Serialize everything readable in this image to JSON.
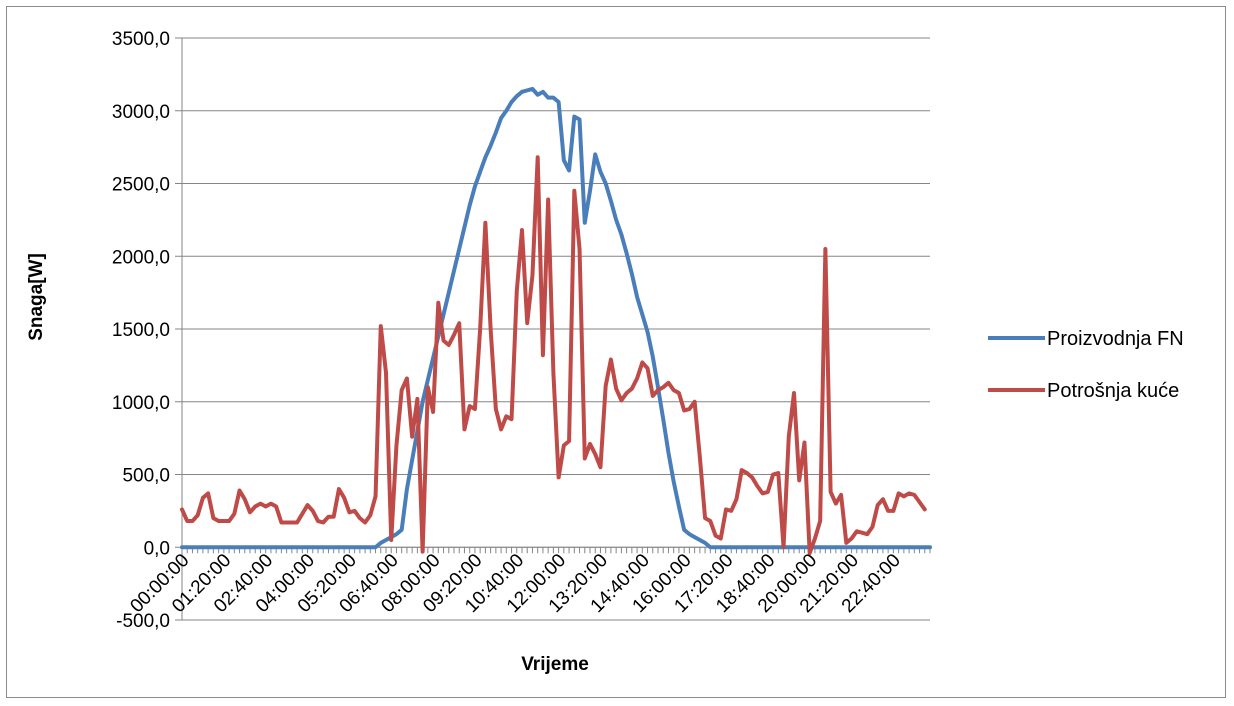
{
  "chart_data": {
    "type": "line",
    "title": "",
    "xlabel": "Vrijeme",
    "ylabel": "Snaga[W]",
    "ylim": [
      -500,
      3500
    ],
    "yticks": [
      -500,
      0,
      500,
      1000,
      1500,
      2000,
      2500,
      3000,
      3500
    ],
    "ytick_labels": [
      "-500,0",
      "0,0",
      "500,0",
      "1000,0",
      "1500,0",
      "2000,0",
      "2500,0",
      "3000,0",
      "3500,0"
    ],
    "x_interval_minutes": 10,
    "x_start": "00:00:00",
    "xtick_labels": [
      "00:00:00",
      "01:20:00",
      "02:40:00",
      "04:00:00",
      "05:20:00",
      "06:40:00",
      "08:00:00",
      "09:20:00",
      "10:40:00",
      "12:00:00",
      "13:20:00",
      "14:40:00",
      "16:00:00",
      "17:20:00",
      "18:40:00",
      "20:00:00",
      "21:20:00",
      "22:40:00"
    ],
    "grid": true,
    "legend_position": "right",
    "colors": {
      "series1": "#4a7ebb",
      "series2": "#be4b48",
      "grid": "#868686",
      "axis": "#868686"
    },
    "series": [
      {
        "name": "Proizvodnja FN",
        "values": [
          0,
          0,
          0,
          0,
          0,
          0,
          0,
          0,
          0,
          0,
          0,
          0,
          0,
          0,
          0,
          0,
          0,
          0,
          0,
          0,
          0,
          0,
          0,
          0,
          0,
          0,
          0,
          0,
          0,
          0,
          0,
          0,
          0,
          0,
          0,
          0,
          0,
          0,
          30,
          50,
          70,
          90,
          120,
          400,
          600,
          800,
          1000,
          1150,
          1300,
          1450,
          1600,
          1750,
          1900,
          2050,
          2200,
          2350,
          2480,
          2580,
          2680,
          2760,
          2850,
          2950,
          3000,
          3060,
          3100,
          3130,
          3140,
          3150,
          3110,
          3130,
          3090,
          3090,
          3060,
          2660,
          2590,
          2960,
          2940,
          2230,
          2450,
          2700,
          2580,
          2500,
          2380,
          2250,
          2150,
          2020,
          1880,
          1720,
          1600,
          1480,
          1310,
          1100,
          880,
          650,
          450,
          280,
          120,
          90,
          70,
          50,
          30,
          0,
          0,
          0,
          0,
          0,
          0,
          0,
          0,
          0,
          0,
          0,
          0,
          0,
          0,
          0,
          0,
          0,
          0,
          0,
          0,
          0,
          0,
          0,
          0,
          0,
          0,
          0,
          0,
          0,
          0,
          0,
          0,
          0,
          0,
          0,
          0,
          0,
          0,
          0,
          0,
          0,
          0,
          0
        ]
      },
      {
        "name": "Potrošnja kuće",
        "values": [
          260,
          180,
          180,
          220,
          340,
          370,
          200,
          180,
          180,
          180,
          230,
          390,
          330,
          240,
          280,
          300,
          280,
          300,
          280,
          170,
          170,
          170,
          170,
          230,
          290,
          250,
          180,
          170,
          210,
          210,
          400,
          340,
          240,
          250,
          200,
          170,
          220,
          350,
          1520,
          1200,
          50,
          700,
          1080,
          1160,
          760,
          1020,
          -30,
          1100,
          930,
          1680,
          1420,
          1390,
          1460,
          1540,
          810,
          970,
          950,
          1500,
          2230,
          1500,
          950,
          810,
          900,
          880,
          1760,
          2180,
          1540,
          1870,
          2680,
          1320,
          2390,
          1200,
          480,
          700,
          730,
          2450,
          2050,
          610,
          710,
          640,
          550,
          1110,
          1290,
          1090,
          1010,
          1060,
          1090,
          1160,
          1270,
          1230,
          1040,
          1080,
          1100,
          1130,
          1080,
          1060,
          940,
          950,
          1000,
          620,
          200,
          180,
          80,
          60,
          260,
          250,
          330,
          530,
          510,
          480,
          420,
          370,
          380,
          500,
          510,
          0,
          760,
          1060,
          460,
          720,
          -40,
          60,
          180,
          2050,
          380,
          300,
          360,
          30,
          60,
          110,
          100,
          90,
          140,
          290,
          330,
          250,
          250,
          370,
          350,
          370,
          360,
          310,
          260
        ]
      }
    ]
  }
}
